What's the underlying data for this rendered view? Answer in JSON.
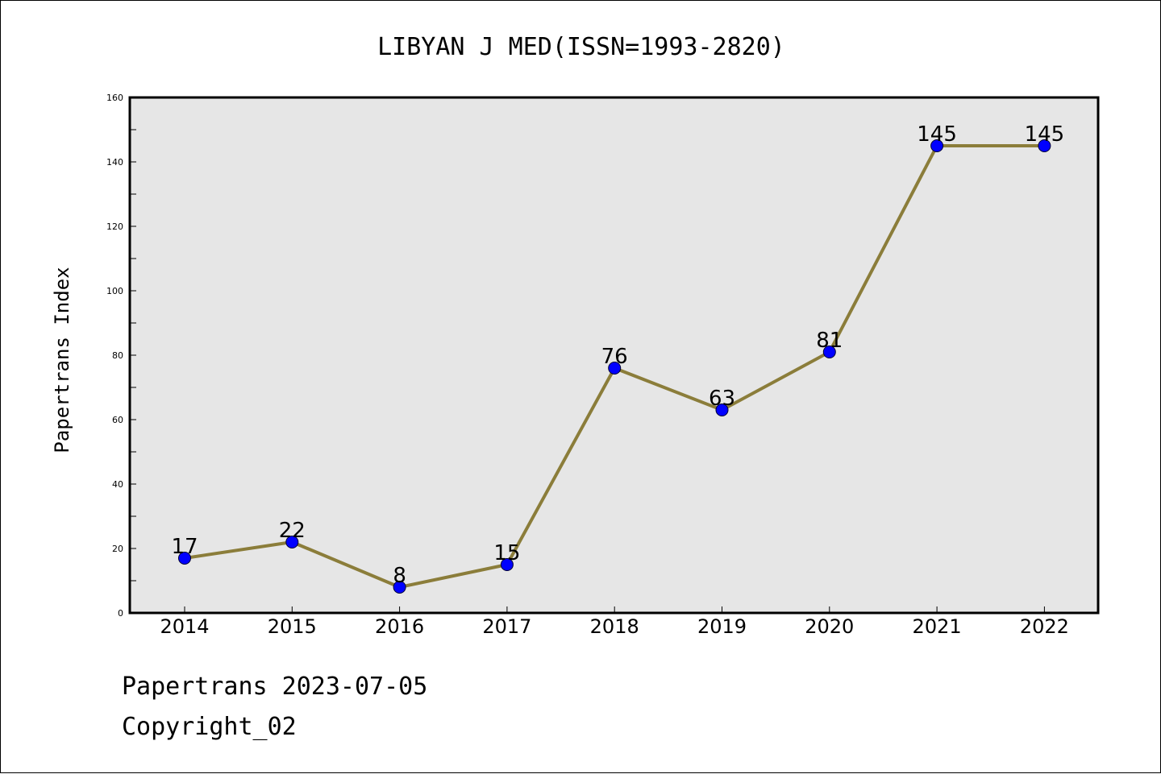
{
  "chart_data": {
    "type": "line",
    "title": "LIBYAN J MED(ISSN=1993-2820)",
    "xlabel": "",
    "ylabel": "Papertrans Index",
    "categories": [
      "2014",
      "2015",
      "2016",
      "2017",
      "2018",
      "2019",
      "2020",
      "2021",
      "2022"
    ],
    "series": [
      {
        "name": "",
        "values": [
          17,
          22,
          8,
          15,
          76,
          63,
          81,
          145,
          145
        ]
      }
    ],
    "ylim": [
      0,
      160
    ],
    "yticks": [
      0,
      20,
      40,
      60,
      80,
      100,
      120,
      140,
      160
    ],
    "grid": false,
    "colors": {
      "line": "#8B7D3A",
      "marker": "#0000FF",
      "marker_edge": "#000033",
      "plot_background": "#E6E6E6"
    }
  },
  "footer": {
    "line1": "Papertrans 2023-07-05",
    "line2": "Copyright_02"
  }
}
